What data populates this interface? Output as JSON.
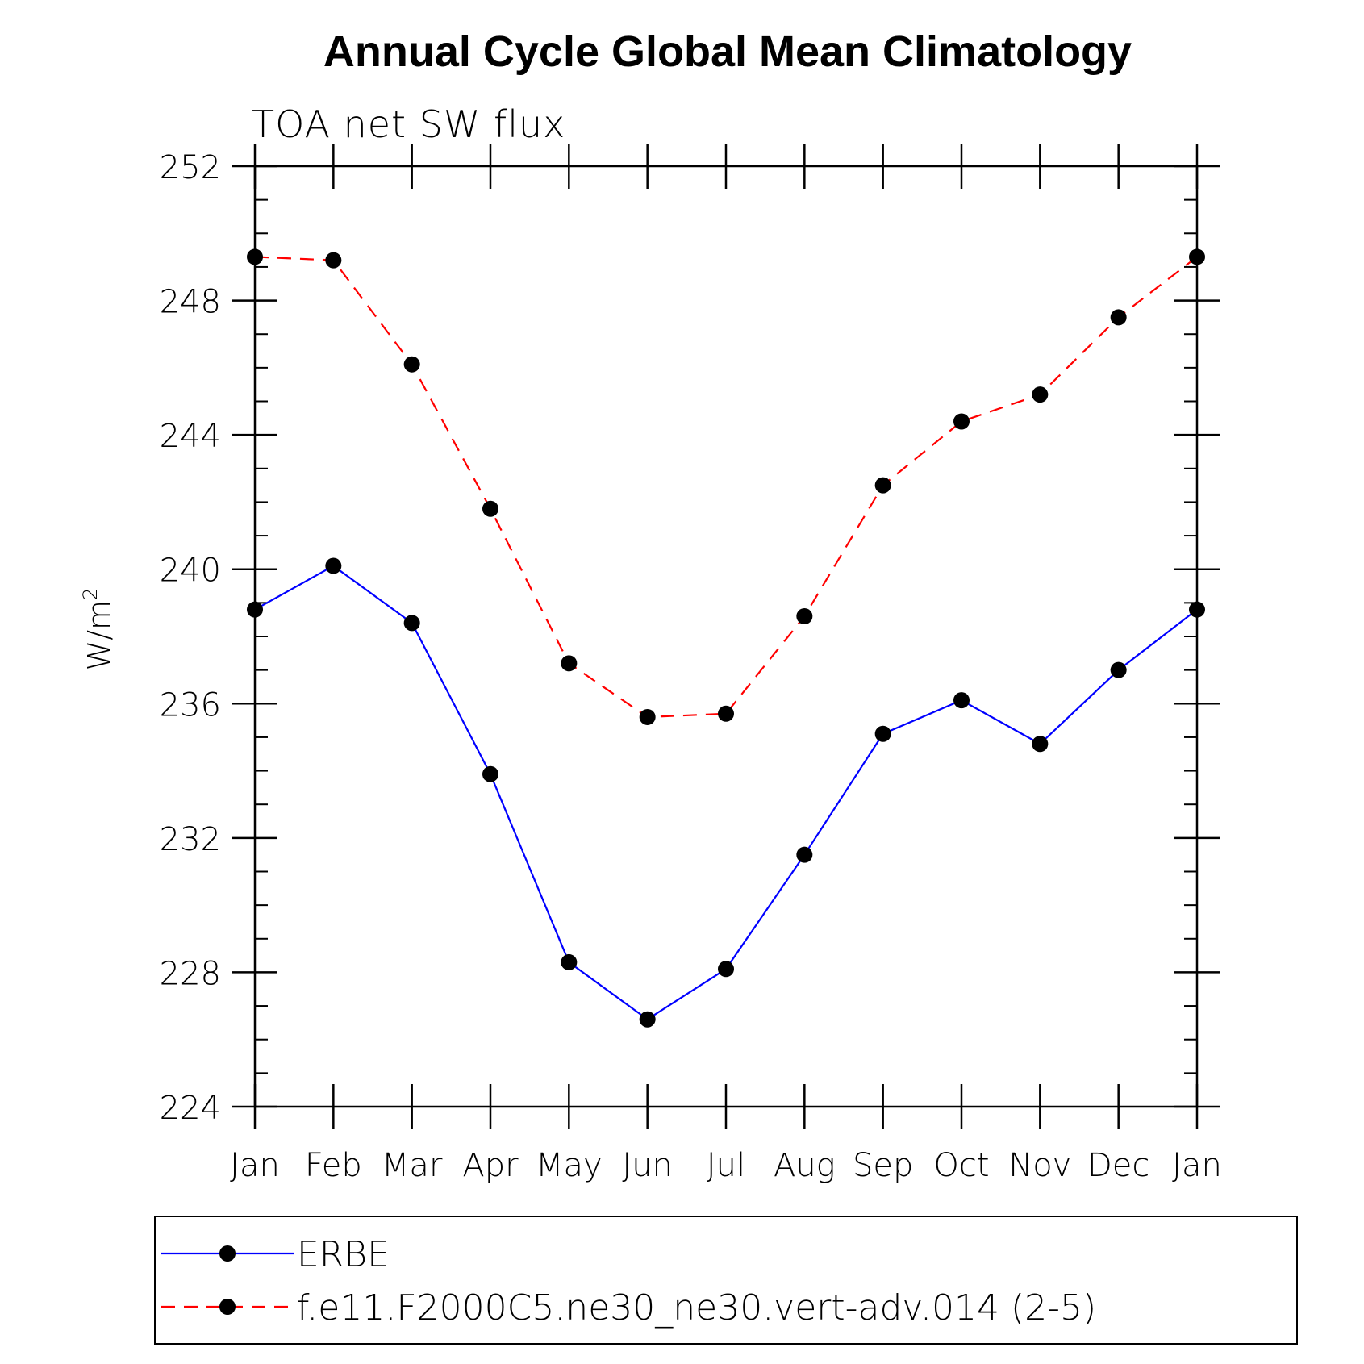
{
  "chart_data": {
    "type": "line",
    "title": "Annual Cycle Global Mean Climatology",
    "subtitle": "TOA net SW flux",
    "xlabel": "",
    "ylabel": "W/m",
    "ylabel_superscript": "2",
    "categories": [
      "Jan",
      "Feb",
      "Mar",
      "Apr",
      "May",
      "Jun",
      "Jul",
      "Aug",
      "Sep",
      "Oct",
      "Nov",
      "Dec",
      "Jan"
    ],
    "ylim": [
      224,
      252
    ],
    "yticks": [
      "224",
      "228",
      "232",
      "236",
      "240",
      "244",
      "248",
      "252"
    ],
    "legend_position": "bottom",
    "series": [
      {
        "name": "ERBE",
        "color": "#0000ff",
        "dash": "solid",
        "values": [
          238.8,
          240.1,
          238.4,
          233.9,
          228.3,
          226.6,
          228.1,
          231.5,
          235.1,
          236.1,
          234.8,
          237.0,
          238.8
        ]
      },
      {
        "name": "f.e11.F2000C5.ne30_ne30.vert-adv.014 (2-5)",
        "color": "#ff0000",
        "dash": "dashed",
        "values": [
          249.3,
          249.2,
          246.1,
          241.8,
          237.2,
          235.6,
          235.7,
          238.6,
          242.5,
          244.4,
          245.2,
          247.5,
          249.3
        ]
      }
    ]
  }
}
